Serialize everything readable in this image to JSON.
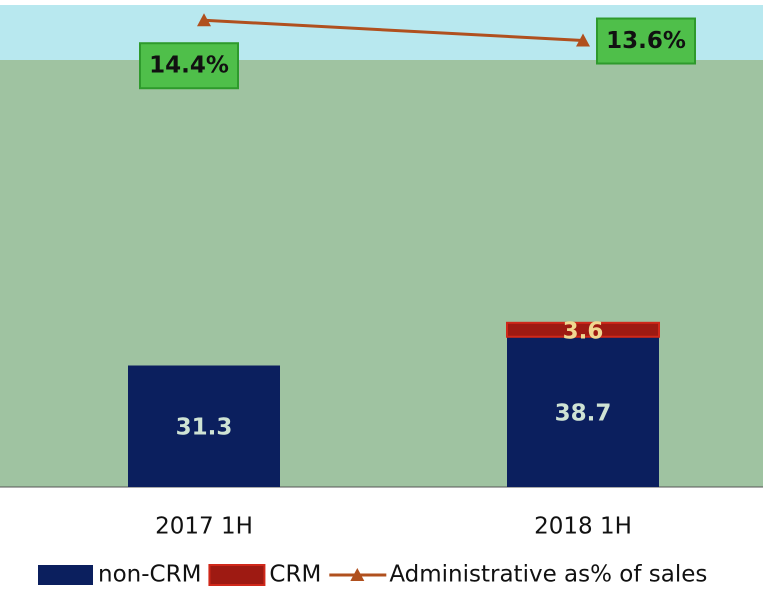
{
  "chart_data": {
    "type": "bar",
    "stacked": true,
    "categories": [
      "2017 1H",
      "2018 1H"
    ],
    "series": [
      {
        "name": "non-CRM",
        "color": "#0b1f5e",
        "values": [
          31.3,
          38.7
        ]
      },
      {
        "name": "CRM",
        "color": "#9e1a12",
        "values": [
          null,
          3.6
        ]
      },
      {
        "name": "Administrative as% of sales",
        "type": "line",
        "axis": "y2",
        "color": "#b0501e",
        "values": [
          14.4,
          13.6
        ],
        "value_labels": [
          "14.4%",
          "13.6%"
        ]
      }
    ],
    "ylim": [
      0,
      110
    ],
    "y2lim": [
      -4,
      15
    ],
    "legend": "bottom"
  }
}
